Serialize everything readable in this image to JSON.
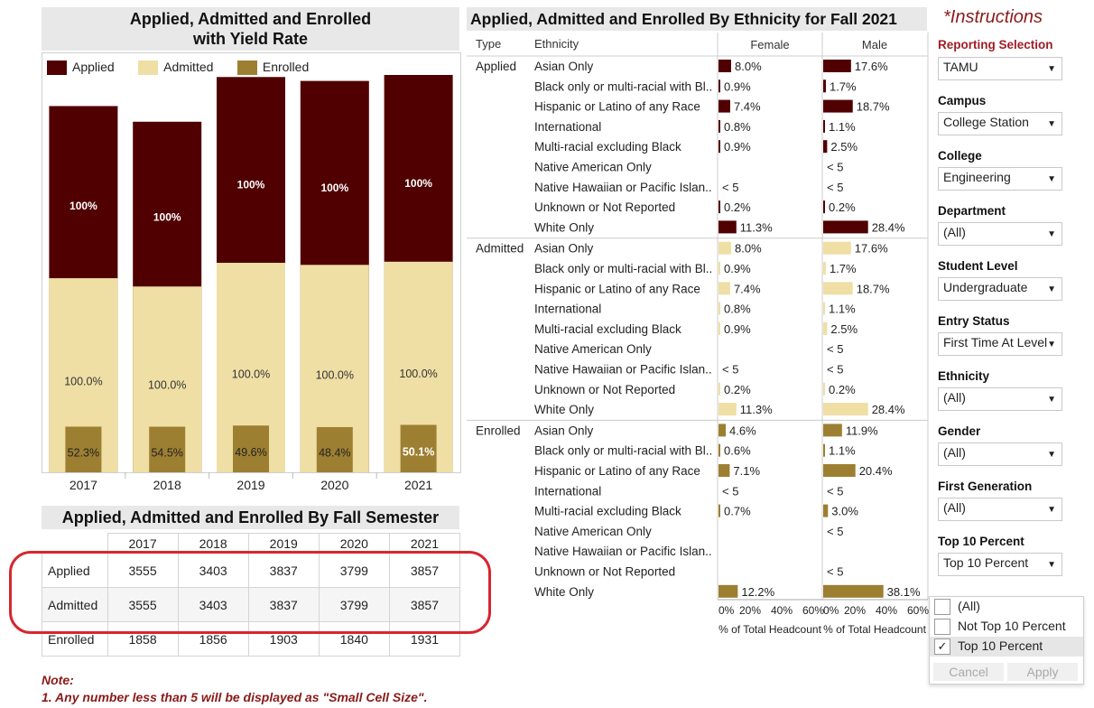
{
  "left_chart": {
    "title_line1": "Applied, Admitted and Enrolled",
    "title_line2": "with Yield Rate",
    "legend": [
      "Applied",
      "Admitted",
      "Enrolled"
    ]
  },
  "colors": {
    "applied": "#500000",
    "admitted": "#efdfa5",
    "enrolled": "#9d7f32",
    "reporting_red": "#8b0000"
  },
  "fall_table": {
    "title": "Applied, Admitted and Enrolled By Fall Semester",
    "years": [
      "2017",
      "2018",
      "2019",
      "2020",
      "2021"
    ],
    "rows": [
      {
        "label": "Applied",
        "values": [
          "3555",
          "3403",
          "3837",
          "3799",
          "3857"
        ]
      },
      {
        "label": "Admitted",
        "values": [
          "3555",
          "3403",
          "3837",
          "3799",
          "3857"
        ]
      },
      {
        "label": "Enrolled",
        "values": [
          "1858",
          "1856",
          "1903",
          "1840",
          "1931"
        ]
      }
    ]
  },
  "note": {
    "heading": "Note:",
    "line1": "1. Any number less than 5 will be displayed as \"Small Cell Size\"."
  },
  "eth_chart": {
    "title": "Applied, Admitted and Enrolled By Ethnicity for Fall 2021",
    "col_type": "Type",
    "col_ethnicity": "Ethnicity",
    "col_female": "Female",
    "col_male": "Male",
    "axis_title": "% of Total Headcount"
  },
  "instructions": "*Instructions",
  "filters": {
    "reporting_selection": {
      "label": "Reporting Selection",
      "value": "TAMU"
    },
    "campus": {
      "label": "Campus",
      "value": "College Station"
    },
    "college": {
      "label": "College",
      "value": "Engineering"
    },
    "department": {
      "label": "Department",
      "value": "(All)"
    },
    "student_level": {
      "label": "Student Level",
      "value": "Undergraduate"
    },
    "entry_status": {
      "label": "Entry Status",
      "value": "First Time At Level"
    },
    "ethnicity": {
      "label": "Ethnicity",
      "value": "(All)"
    },
    "gender": {
      "label": "Gender",
      "value": "(All)"
    },
    "first_generation": {
      "label": "First Generation",
      "value": "(All)"
    },
    "top10": {
      "label": "Top 10 Percent",
      "value": "Top 10 Percent"
    }
  },
  "top10_popup": {
    "options": [
      {
        "label": "(All)",
        "checked": false
      },
      {
        "label": "Not Top 10 Percent",
        "checked": false
      },
      {
        "label": "Top 10 Percent",
        "checked": true
      }
    ],
    "cancel": "Cancel",
    "apply": "Apply"
  },
  "chart_data": [
    {
      "type": "bar",
      "title": "Applied, Admitted and Enrolled with Yield Rate",
      "categories": [
        "2017",
        "2018",
        "2019",
        "2020",
        "2021"
      ],
      "series": [
        {
          "name": "Applied",
          "values": [
            3555,
            3403,
            3837,
            3799,
            3857
          ],
          "labels": [
            "100%",
            "100%",
            "100%",
            "100%",
            "100%"
          ]
        },
        {
          "name": "Admitted",
          "values": [
            3555,
            3403,
            3837,
            3799,
            3857
          ],
          "labels": [
            "100.0%",
            "100.0%",
            "100.0%",
            "100.0%",
            "100.0%"
          ]
        },
        {
          "name": "Enrolled",
          "values": [
            1858,
            1856,
            1903,
            1840,
            1931
          ],
          "labels": [
            "52.3%",
            "54.5%",
            "49.6%",
            "48.4%",
            "50.1%"
          ]
        }
      ],
      "legend": "top-left"
    },
    {
      "type": "bar",
      "title": "Applied, Admitted and Enrolled By Ethnicity for Fall 2021",
      "xlabel": "% of Total Headcount",
      "xlim": [
        0,
        60
      ],
      "ticks": [
        "0%",
        "20%",
        "40%",
        "60%"
      ],
      "ethnicities": [
        "Asian Only",
        "Black only or multi-racial with Bl..",
        "Hispanic or Latino of any Race",
        "International",
        "Multi-racial excluding Black",
        "Native American Only",
        "Native Hawaiian or Pacific Islan..",
        "Unknown or Not Reported",
        "White Only"
      ],
      "groups": [
        {
          "type": "Applied",
          "female": [
            8.0,
            0.9,
            7.4,
            0.8,
            0.9,
            null,
            null,
            0.2,
            11.3
          ],
          "female_labels": [
            "8.0%",
            "0.9%",
            "7.4%",
            "0.8%",
            "0.9%",
            "",
            "< 5",
            "0.2%",
            "11.3%"
          ],
          "male": [
            17.6,
            1.7,
            18.7,
            1.1,
            2.5,
            null,
            null,
            0.2,
            28.4
          ],
          "male_labels": [
            "17.6%",
            "1.7%",
            "18.7%",
            "1.1%",
            "2.5%",
            "< 5",
            "< 5",
            "0.2%",
            "28.4%"
          ]
        },
        {
          "type": "Admitted",
          "female": [
            8.0,
            0.9,
            7.4,
            0.8,
            0.9,
            null,
            null,
            0.2,
            11.3
          ],
          "female_labels": [
            "8.0%",
            "0.9%",
            "7.4%",
            "0.8%",
            "0.9%",
            "",
            "< 5",
            "0.2%",
            "11.3%"
          ],
          "male": [
            17.6,
            1.7,
            18.7,
            1.1,
            2.5,
            null,
            null,
            0.2,
            28.4
          ],
          "male_labels": [
            "17.6%",
            "1.7%",
            "18.7%",
            "1.1%",
            "2.5%",
            "< 5",
            "< 5",
            "0.2%",
            "28.4%"
          ]
        },
        {
          "type": "Enrolled",
          "female": [
            4.6,
            0.6,
            7.1,
            null,
            0.7,
            null,
            null,
            null,
            12.2
          ],
          "female_labels": [
            "4.6%",
            "0.6%",
            "7.1%",
            "< 5",
            "0.7%",
            "",
            "",
            "",
            "12.2%"
          ],
          "male": [
            11.9,
            1.1,
            20.4,
            null,
            3.0,
            null,
            null,
            null,
            38.1
          ],
          "male_labels": [
            "11.9%",
            "1.1%",
            "20.4%",
            "< 5",
            "3.0%",
            "< 5",
            "",
            "< 5",
            "38.1%"
          ]
        }
      ]
    }
  ]
}
